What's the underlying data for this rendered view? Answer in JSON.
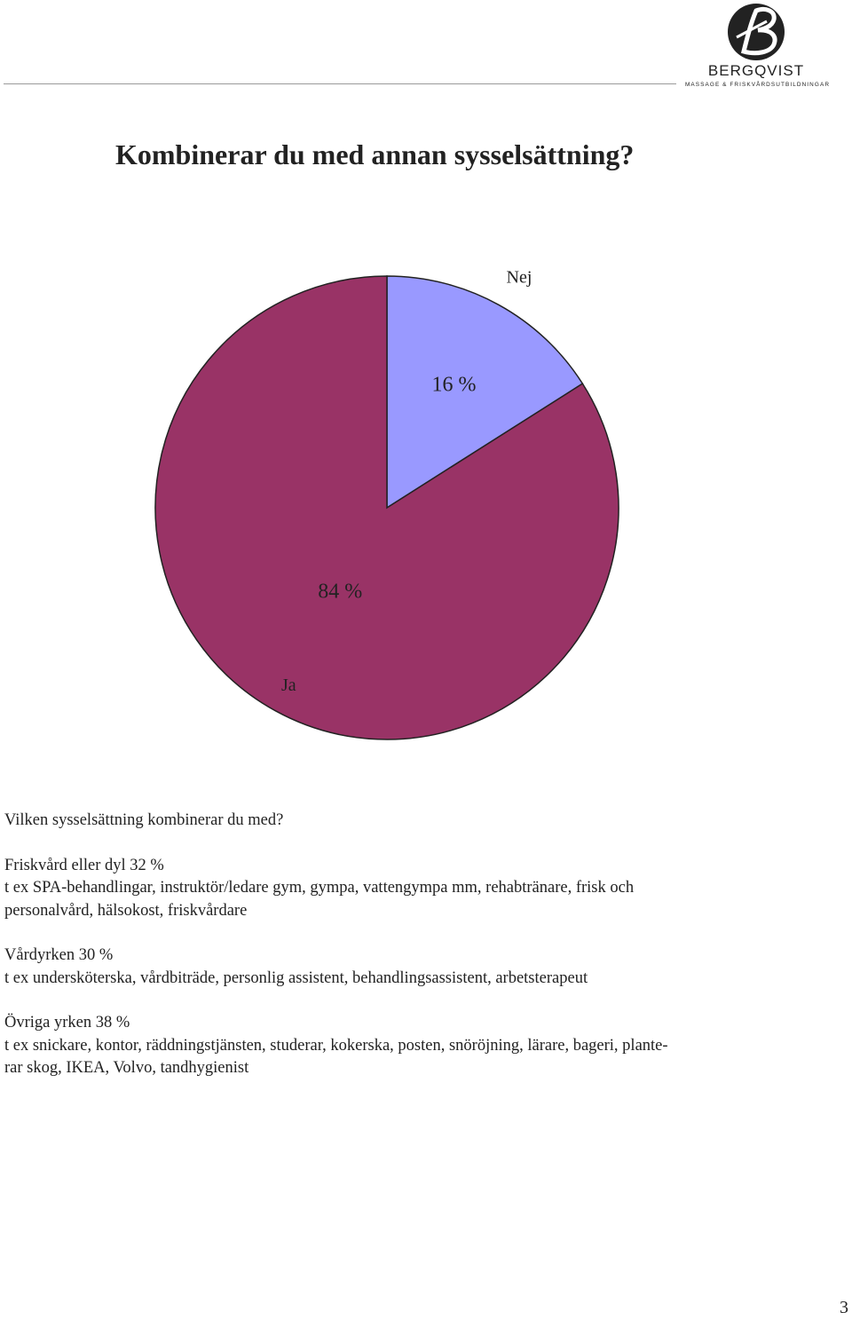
{
  "logo": {
    "name": "BERGQVIST",
    "tagline": "MASSAGE & FRISKVÅRDSUTBILDNINGAR",
    "color": "#222222"
  },
  "title": "Kombinerar du med annan sysselsättning?",
  "chart_data": {
    "type": "pie",
    "title": "",
    "categories": [
      "Nej",
      "Ja"
    ],
    "values": [
      16,
      84
    ],
    "value_labels": [
      "16 %",
      "84 %"
    ],
    "colors": [
      "#9999ff",
      "#993366"
    ],
    "start": "12 o'clock, clockwise",
    "legend": "none"
  },
  "question": "Vilken sysselsättning kombinerar du med?",
  "categories": [
    {
      "heading": "Friskvård eller dyl 32 %",
      "lines": [
        "t ex SPA-behandlingar, instruktör/ledare gym, gympa,  vattengympa mm, rehabtränare, frisk och",
        "personalvård, hälsokost, friskvårdare"
      ]
    },
    {
      "heading": "Vårdyrken 30 %",
      "lines": [
        "t ex undersköterska, vårdbiträde, personlig assistent, behandlingsassistent, arbetsterapeut"
      ]
    },
    {
      "heading": "Övriga yrken 38 %",
      "lines": [
        "t ex snickare, kontor, räddningstjänsten, studerar, kokerska, posten, snöröjning, lärare, bageri, plante-",
        "rar skog, IKEA, Volvo, tandhygienist"
      ]
    }
  ],
  "page_number": "3"
}
